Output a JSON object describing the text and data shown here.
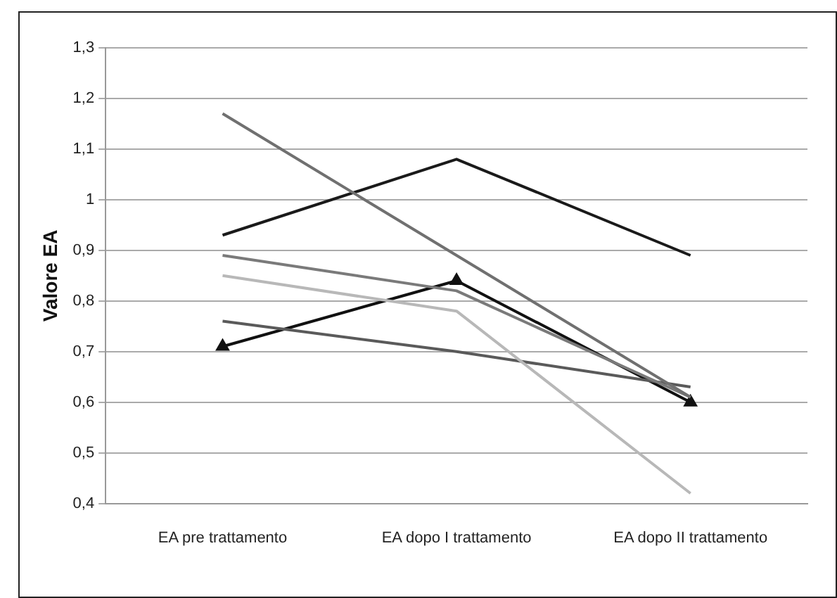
{
  "chart_data": {
    "type": "line",
    "ylabel": "Valore EA",
    "categories": [
      "EA pre trattamento",
      "EA dopo I trattamento",
      "EA dopo II trattamento"
    ],
    "series": [
      {
        "color": "#707070",
        "values": [
          1.17,
          0.89,
          0.61
        ]
      },
      {
        "color": "#1a1a1a",
        "values": [
          0.93,
          1.08,
          0.89
        ]
      },
      {
        "color": "#7a7a7a",
        "values": [
          0.89,
          0.82,
          0.61
        ]
      },
      {
        "color": "#b8b8b8",
        "values": [
          0.85,
          0.78,
          0.42
        ]
      },
      {
        "color": "#5a5a5a",
        "values": [
          0.76,
          0.7,
          0.63
        ]
      },
      {
        "color": "#111111",
        "values": [
          0.71,
          0.84,
          0.6
        ],
        "marker": "triangle"
      }
    ],
    "ylim": [
      0.4,
      1.3
    ],
    "yticks": [
      {
        "value": 0.4,
        "label": "0,4"
      },
      {
        "value": 0.5,
        "label": "0,5"
      },
      {
        "value": 0.6,
        "label": "0,6"
      },
      {
        "value": 0.7,
        "label": "0,7"
      },
      {
        "value": 0.8,
        "label": "0,8"
      },
      {
        "value": 0.9,
        "label": "0,9"
      },
      1,
      {
        "value": 1.1,
        "label": "1,1"
      },
      {
        "value": 1.2,
        "label": "1,2"
      },
      {
        "value": 1.3,
        "label": "1,3"
      }
    ],
    "grid": "y",
    "legend": false,
    "marker": "none",
    "line_style": "solid"
  }
}
